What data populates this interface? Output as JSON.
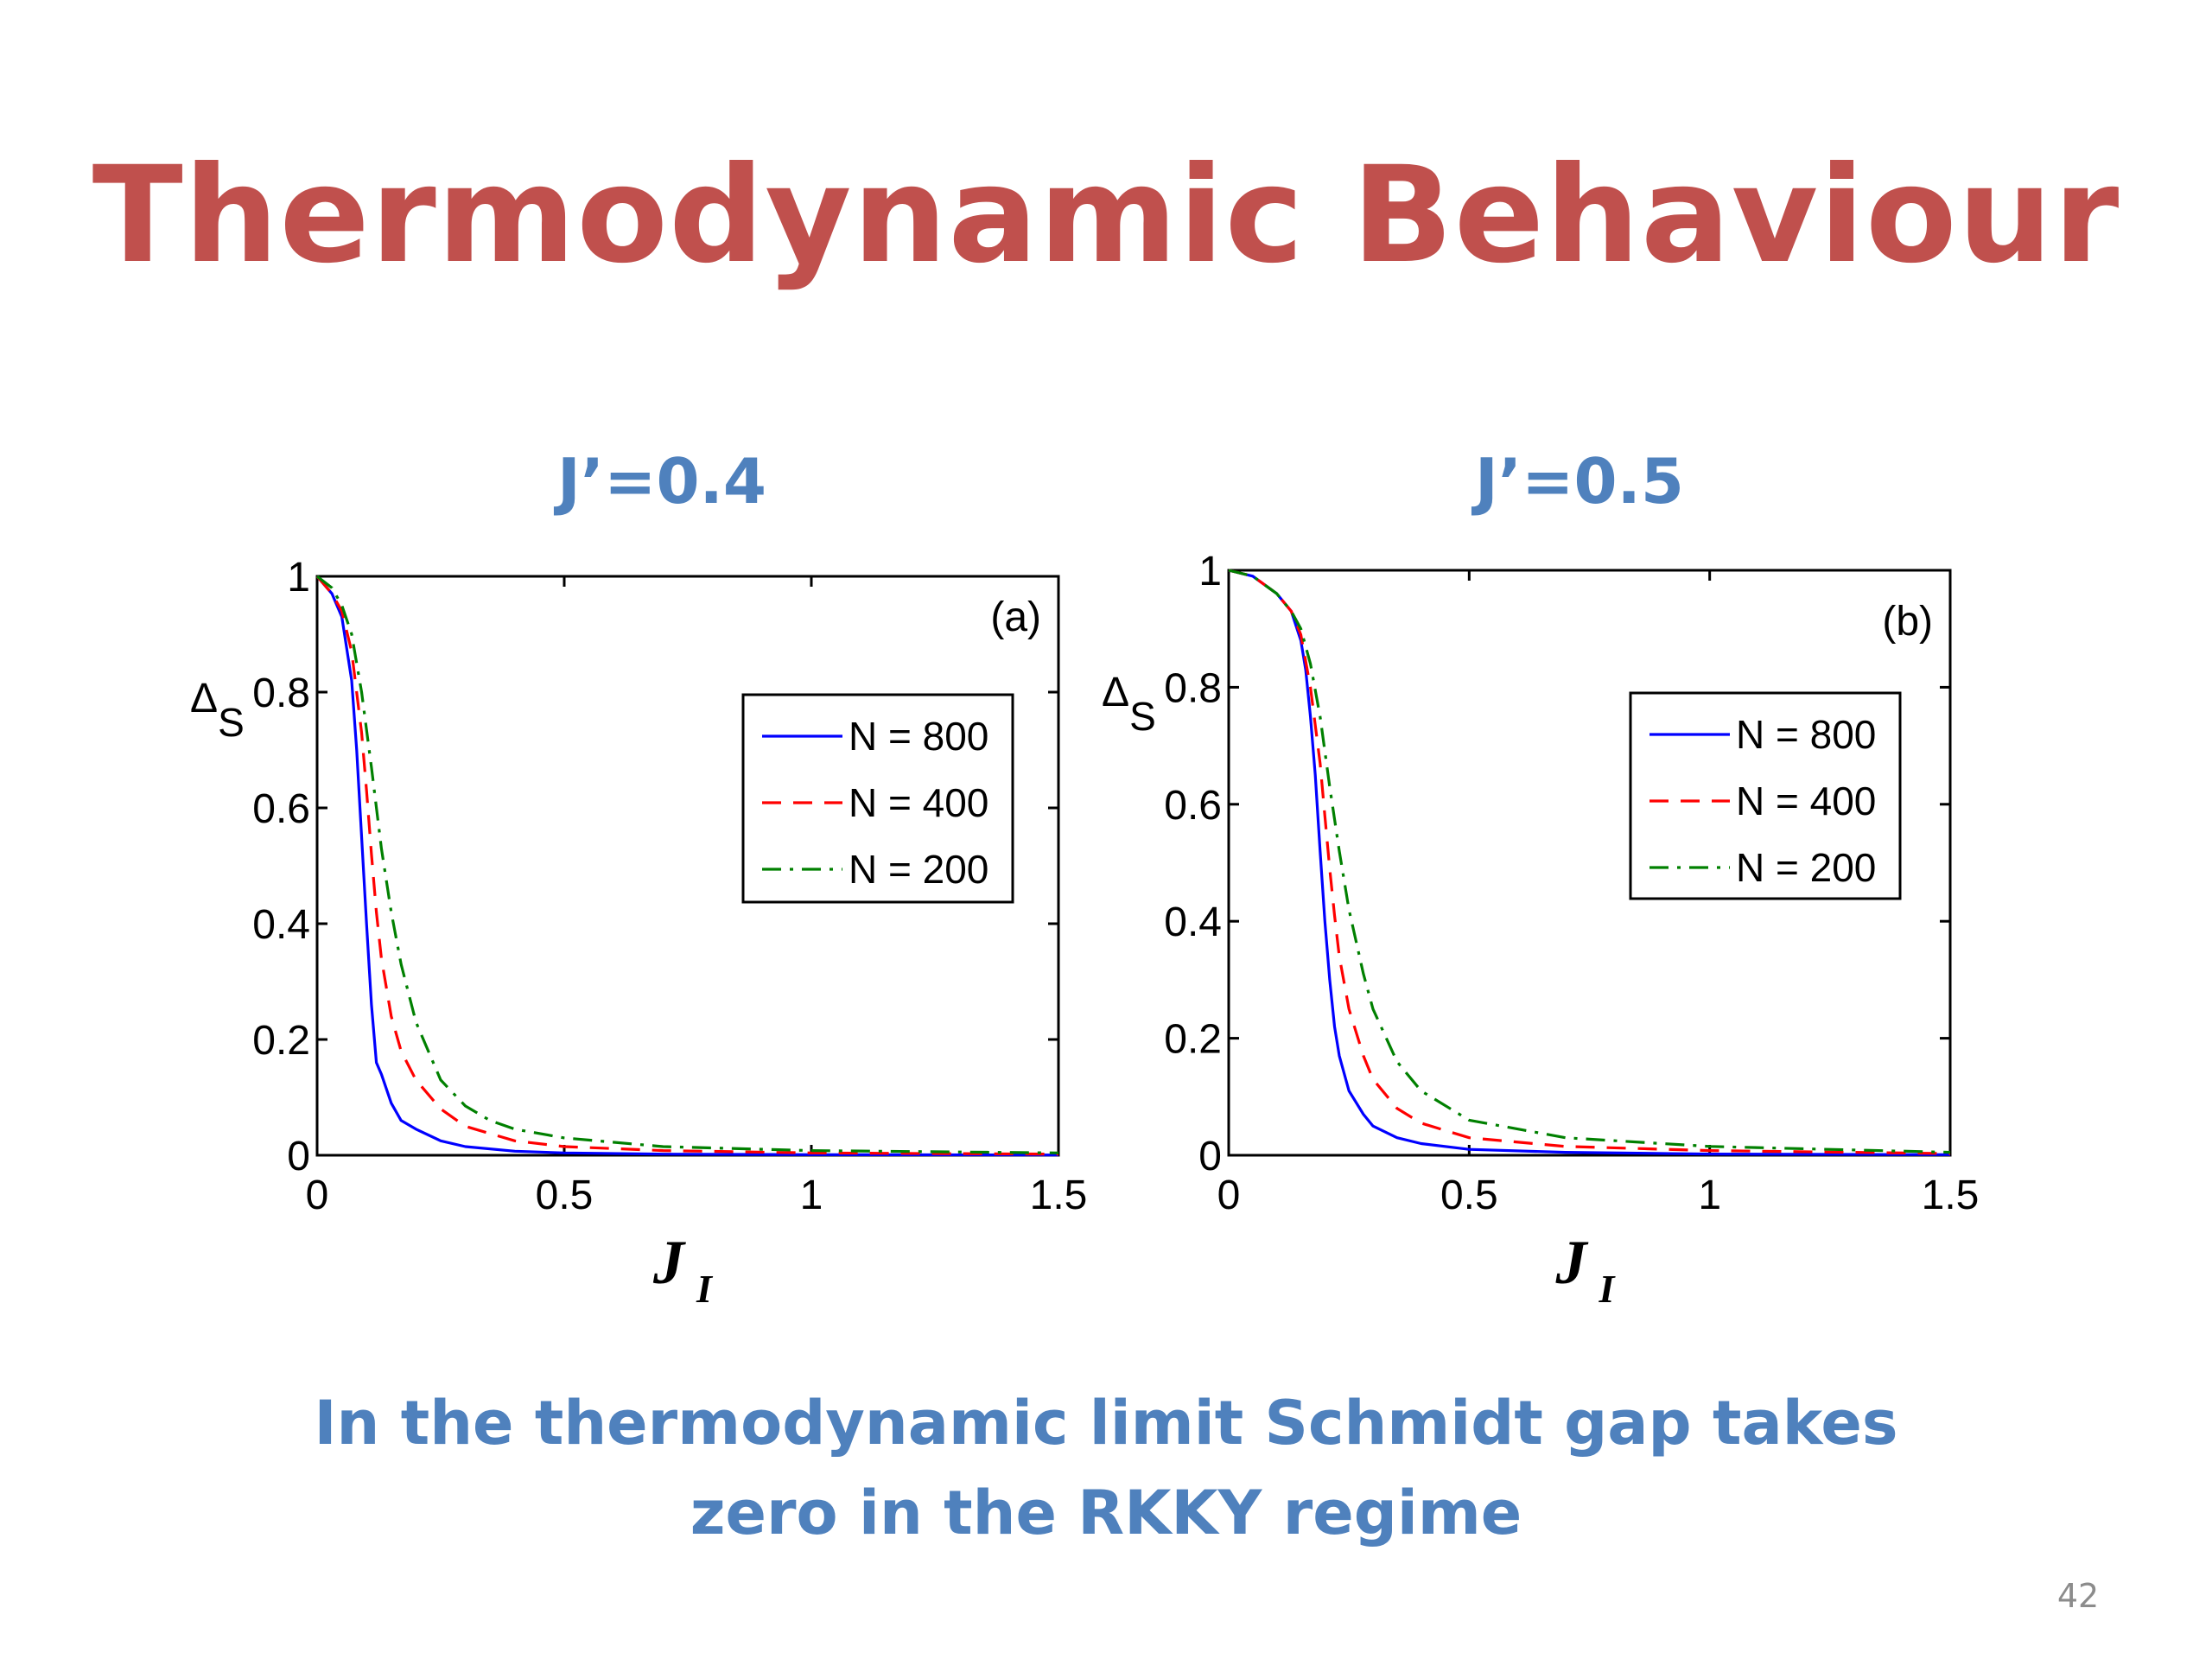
{
  "slide": {
    "title": "Thermodynamic Behaviour",
    "conclusion_line1": "In the thermodynamic limit Schmidt gap takes",
    "conclusion_line2": "zero in the RKKY regime",
    "page_number": "42"
  },
  "colors": {
    "title": "#c0504d",
    "caption": "#4f81bd",
    "series_800": "#0000ff",
    "series_400": "#ff0000",
    "series_200": "#008000"
  },
  "chart_data": [
    {
      "type": "line",
      "caption": "J’=0.4",
      "panel_label": "(a)",
      "ylabel": "Δ",
      "ylabel_sub": "S",
      "xlabel": "J",
      "xlabel_sub": "I",
      "xlim": [
        0,
        1.5
      ],
      "ylim": [
        0,
        1
      ],
      "xticks": [
        "0",
        "0.5",
        "1",
        "1.5"
      ],
      "yticks": [
        "0",
        "0.2",
        "0.4",
        "0.6",
        "0.8",
        "1"
      ],
      "grid": false,
      "legend_position": "upper-right",
      "series": [
        {
          "name": "N = 800",
          "style": "solid",
          "color": "#0000ff",
          "x": [
            0,
            0.03,
            0.05,
            0.07,
            0.08,
            0.09,
            0.1,
            0.11,
            0.12,
            0.13,
            0.15,
            0.17,
            0.2,
            0.25,
            0.3,
            0.4,
            0.5,
            0.7,
            1.0,
            1.5
          ],
          "y": [
            1.0,
            0.97,
            0.93,
            0.82,
            0.7,
            0.55,
            0.4,
            0.26,
            0.16,
            0.14,
            0.09,
            0.06,
            0.045,
            0.025,
            0.015,
            0.007,
            0.004,
            0.002,
            0.001,
            0.0005
          ]
        },
        {
          "name": "N = 400",
          "style": "dashed",
          "color": "#ff0000",
          "x": [
            0,
            0.03,
            0.05,
            0.07,
            0.09,
            0.1,
            0.11,
            0.12,
            0.13,
            0.15,
            0.17,
            0.2,
            0.25,
            0.3,
            0.4,
            0.5,
            0.7,
            1.0,
            1.5
          ],
          "y": [
            1.0,
            0.97,
            0.94,
            0.87,
            0.73,
            0.63,
            0.52,
            0.42,
            0.34,
            0.24,
            0.18,
            0.13,
            0.08,
            0.05,
            0.025,
            0.015,
            0.008,
            0.004,
            0.002
          ]
        },
        {
          "name": "N = 200",
          "style": "dashdot",
          "color": "#008000",
          "x": [
            0,
            0.03,
            0.05,
            0.07,
            0.09,
            0.11,
            0.13,
            0.15,
            0.17,
            0.2,
            0.25,
            0.3,
            0.35,
            0.4,
            0.5,
            0.7,
            1.0,
            1.5
          ],
          "y": [
            1.0,
            0.98,
            0.95,
            0.9,
            0.8,
            0.67,
            0.53,
            0.42,
            0.33,
            0.23,
            0.13,
            0.085,
            0.06,
            0.045,
            0.03,
            0.015,
            0.008,
            0.004
          ]
        }
      ]
    },
    {
      "type": "line",
      "caption": "J’=0.5",
      "panel_label": "(b)",
      "ylabel": "Δ",
      "ylabel_sub": "S",
      "xlabel": "J",
      "xlabel_sub": "I",
      "xlim": [
        0,
        1.5
      ],
      "ylim": [
        0,
        1
      ],
      "xticks": [
        "0",
        "0.5",
        "1",
        "1.5"
      ],
      "yticks": [
        "0",
        "0.2",
        "0.4",
        "0.6",
        "0.8",
        "1"
      ],
      "grid": false,
      "legend_position": "upper-right",
      "series": [
        {
          "name": "N = 800",
          "style": "solid",
          "color": "#0000ff",
          "x": [
            0,
            0.05,
            0.1,
            0.13,
            0.15,
            0.16,
            0.17,
            0.18,
            0.19,
            0.2,
            0.21,
            0.22,
            0.23,
            0.25,
            0.28,
            0.3,
            0.35,
            0.4,
            0.5,
            0.7,
            1.0,
            1.5
          ],
          "y": [
            1.0,
            0.99,
            0.96,
            0.93,
            0.88,
            0.83,
            0.75,
            0.65,
            0.52,
            0.4,
            0.3,
            0.22,
            0.17,
            0.11,
            0.07,
            0.05,
            0.03,
            0.02,
            0.01,
            0.005,
            0.002,
            0.001
          ]
        },
        {
          "name": "N = 400",
          "style": "dashed",
          "color": "#ff0000",
          "x": [
            0,
            0.05,
            0.1,
            0.13,
            0.15,
            0.17,
            0.19,
            0.2,
            0.21,
            0.22,
            0.23,
            0.25,
            0.28,
            0.3,
            0.35,
            0.4,
            0.5,
            0.7,
            1.0,
            1.5
          ],
          "y": [
            1.0,
            0.99,
            0.96,
            0.93,
            0.89,
            0.8,
            0.67,
            0.58,
            0.49,
            0.41,
            0.34,
            0.25,
            0.17,
            0.13,
            0.08,
            0.055,
            0.03,
            0.015,
            0.008,
            0.003
          ]
        },
        {
          "name": "N = 200",
          "style": "dashdot",
          "color": "#008000",
          "x": [
            0,
            0.05,
            0.1,
            0.13,
            0.15,
            0.17,
            0.19,
            0.21,
            0.23,
            0.25,
            0.28,
            0.3,
            0.35,
            0.4,
            0.5,
            0.7,
            1.0,
            1.5
          ],
          "y": [
            1.0,
            0.99,
            0.96,
            0.93,
            0.9,
            0.84,
            0.75,
            0.63,
            0.52,
            0.42,
            0.31,
            0.25,
            0.16,
            0.11,
            0.06,
            0.03,
            0.015,
            0.005
          ]
        }
      ]
    }
  ]
}
